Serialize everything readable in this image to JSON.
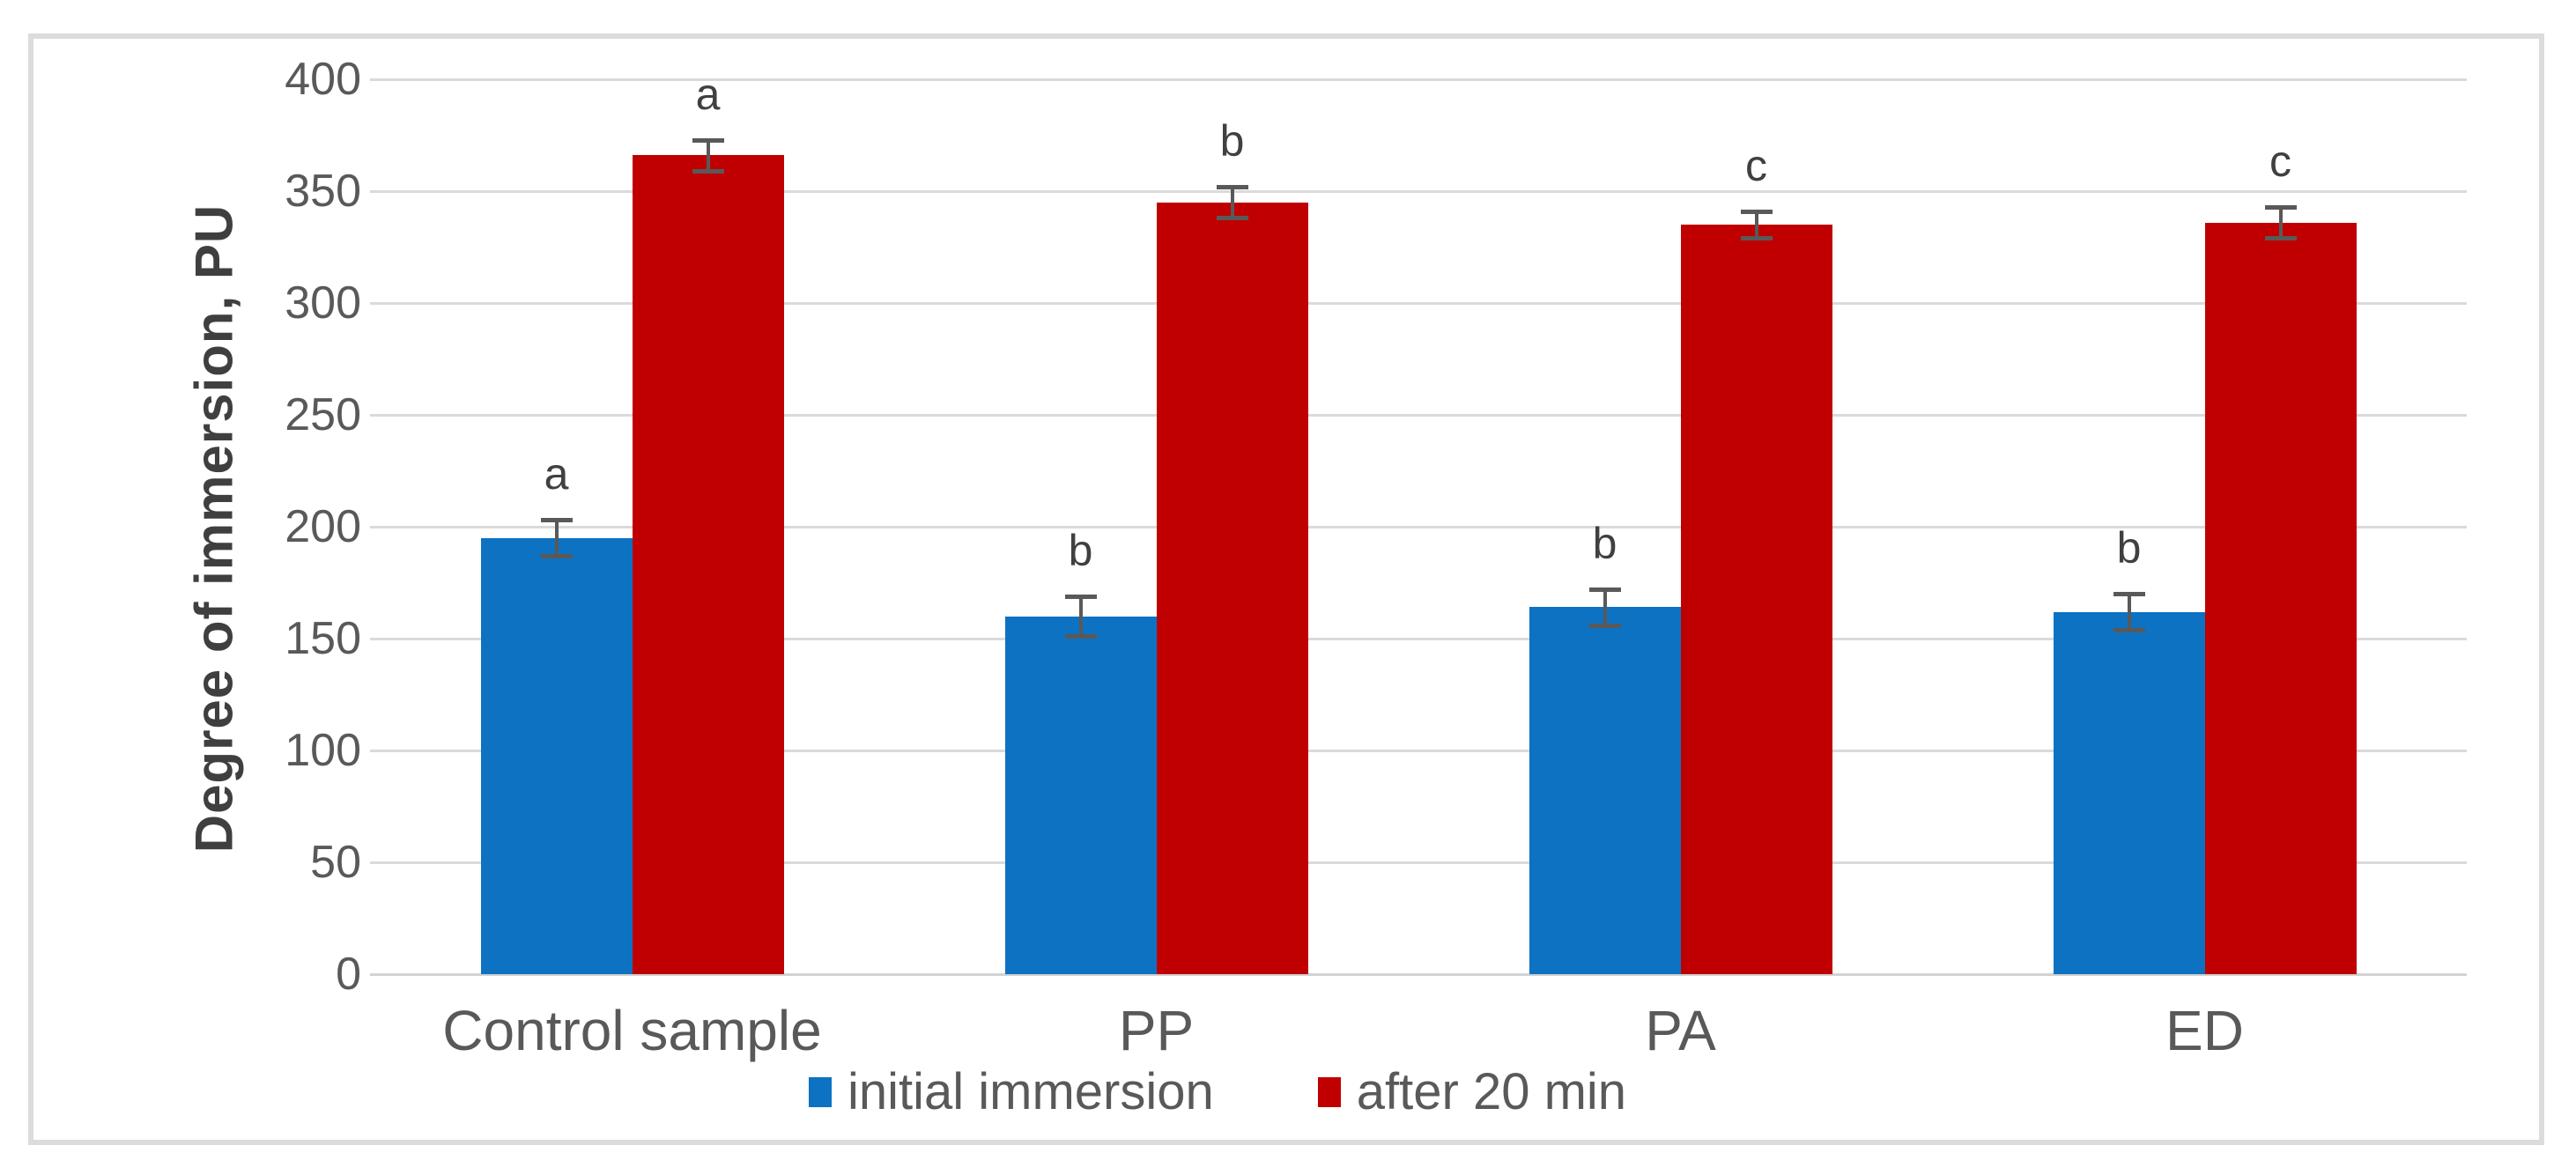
{
  "chart_data": {
    "type": "bar",
    "title": "",
    "xlabel": "",
    "ylabel": "Degree of immersion, PU",
    "ylim": [
      0,
      400
    ],
    "yticks": [
      0,
      50,
      100,
      150,
      200,
      250,
      300,
      350,
      400
    ],
    "grid": "horizontal-on",
    "legend_position": "bottom",
    "categories": [
      "Control sample",
      "PP",
      "PA",
      "ED"
    ],
    "series": [
      {
        "name": "initial immersion",
        "color": "#0d72c2",
        "values": [
          195,
          160,
          164,
          162
        ],
        "errors": [
          8,
          9,
          8,
          8
        ],
        "sig_letters": [
          "a",
          "b",
          "b",
          "b"
        ]
      },
      {
        "name": "after 20 min",
        "color": "#c00000",
        "values": [
          366,
          345,
          335,
          336
        ],
        "errors": [
          7,
          7,
          6,
          7
        ],
        "sig_letters": [
          "a",
          "b",
          "c",
          "c"
        ]
      }
    ],
    "colors": {
      "gridline": "#dadada",
      "axis_text": "#595959",
      "error_bar": "#595959",
      "sig_letter": "#404040",
      "frame_border": "#dcdcdc"
    }
  }
}
